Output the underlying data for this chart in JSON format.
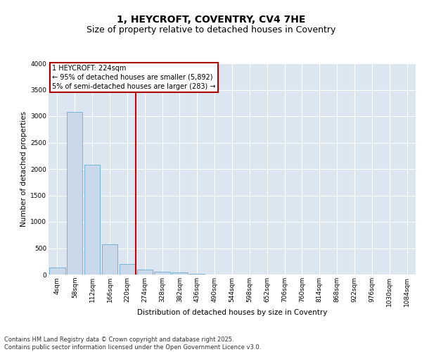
{
  "title": "1, HEYCROFT, COVENTRY, CV4 7HE",
  "subtitle": "Size of property relative to detached houses in Coventry",
  "xlabel": "Distribution of detached houses by size in Coventry",
  "ylabel": "Number of detached properties",
  "bar_color": "#c9d9ea",
  "bar_edge_color": "#6aaad4",
  "plot_bg_color": "#dce6f1",
  "grid_color": "#ffffff",
  "vline_color": "#cc0000",
  "vline_xi": 4.5,
  "annotation_text": "1 HEYCROFT: 224sqm\n← 95% of detached houses are smaller (5,892)\n5% of semi-detached houses are larger (283) →",
  "annotation_box_edge_color": "#aa0000",
  "categories": [
    "4sqm",
    "58sqm",
    "112sqm",
    "166sqm",
    "220sqm",
    "274sqm",
    "328sqm",
    "382sqm",
    "436sqm",
    "490sqm",
    "544sqm",
    "598sqm",
    "652sqm",
    "706sqm",
    "760sqm",
    "814sqm",
    "868sqm",
    "922sqm",
    "976sqm",
    "1030sqm",
    "1084sqm"
  ],
  "values": [
    130,
    3080,
    2080,
    580,
    195,
    90,
    60,
    35,
    20,
    5,
    0,
    0,
    0,
    0,
    0,
    0,
    0,
    0,
    0,
    0,
    0
  ],
  "ylim": [
    0,
    4000
  ],
  "yticks": [
    0,
    500,
    1000,
    1500,
    2000,
    2500,
    3000,
    3500,
    4000
  ],
  "footer_text": "Contains HM Land Registry data © Crown copyright and database right 2025.\nContains public sector information licensed under the Open Government Licence v3.0.",
  "title_fontsize": 10,
  "subtitle_fontsize": 9,
  "axis_label_fontsize": 7.5,
  "tick_fontsize": 6.5,
  "annotation_fontsize": 7,
  "footer_fontsize": 6
}
